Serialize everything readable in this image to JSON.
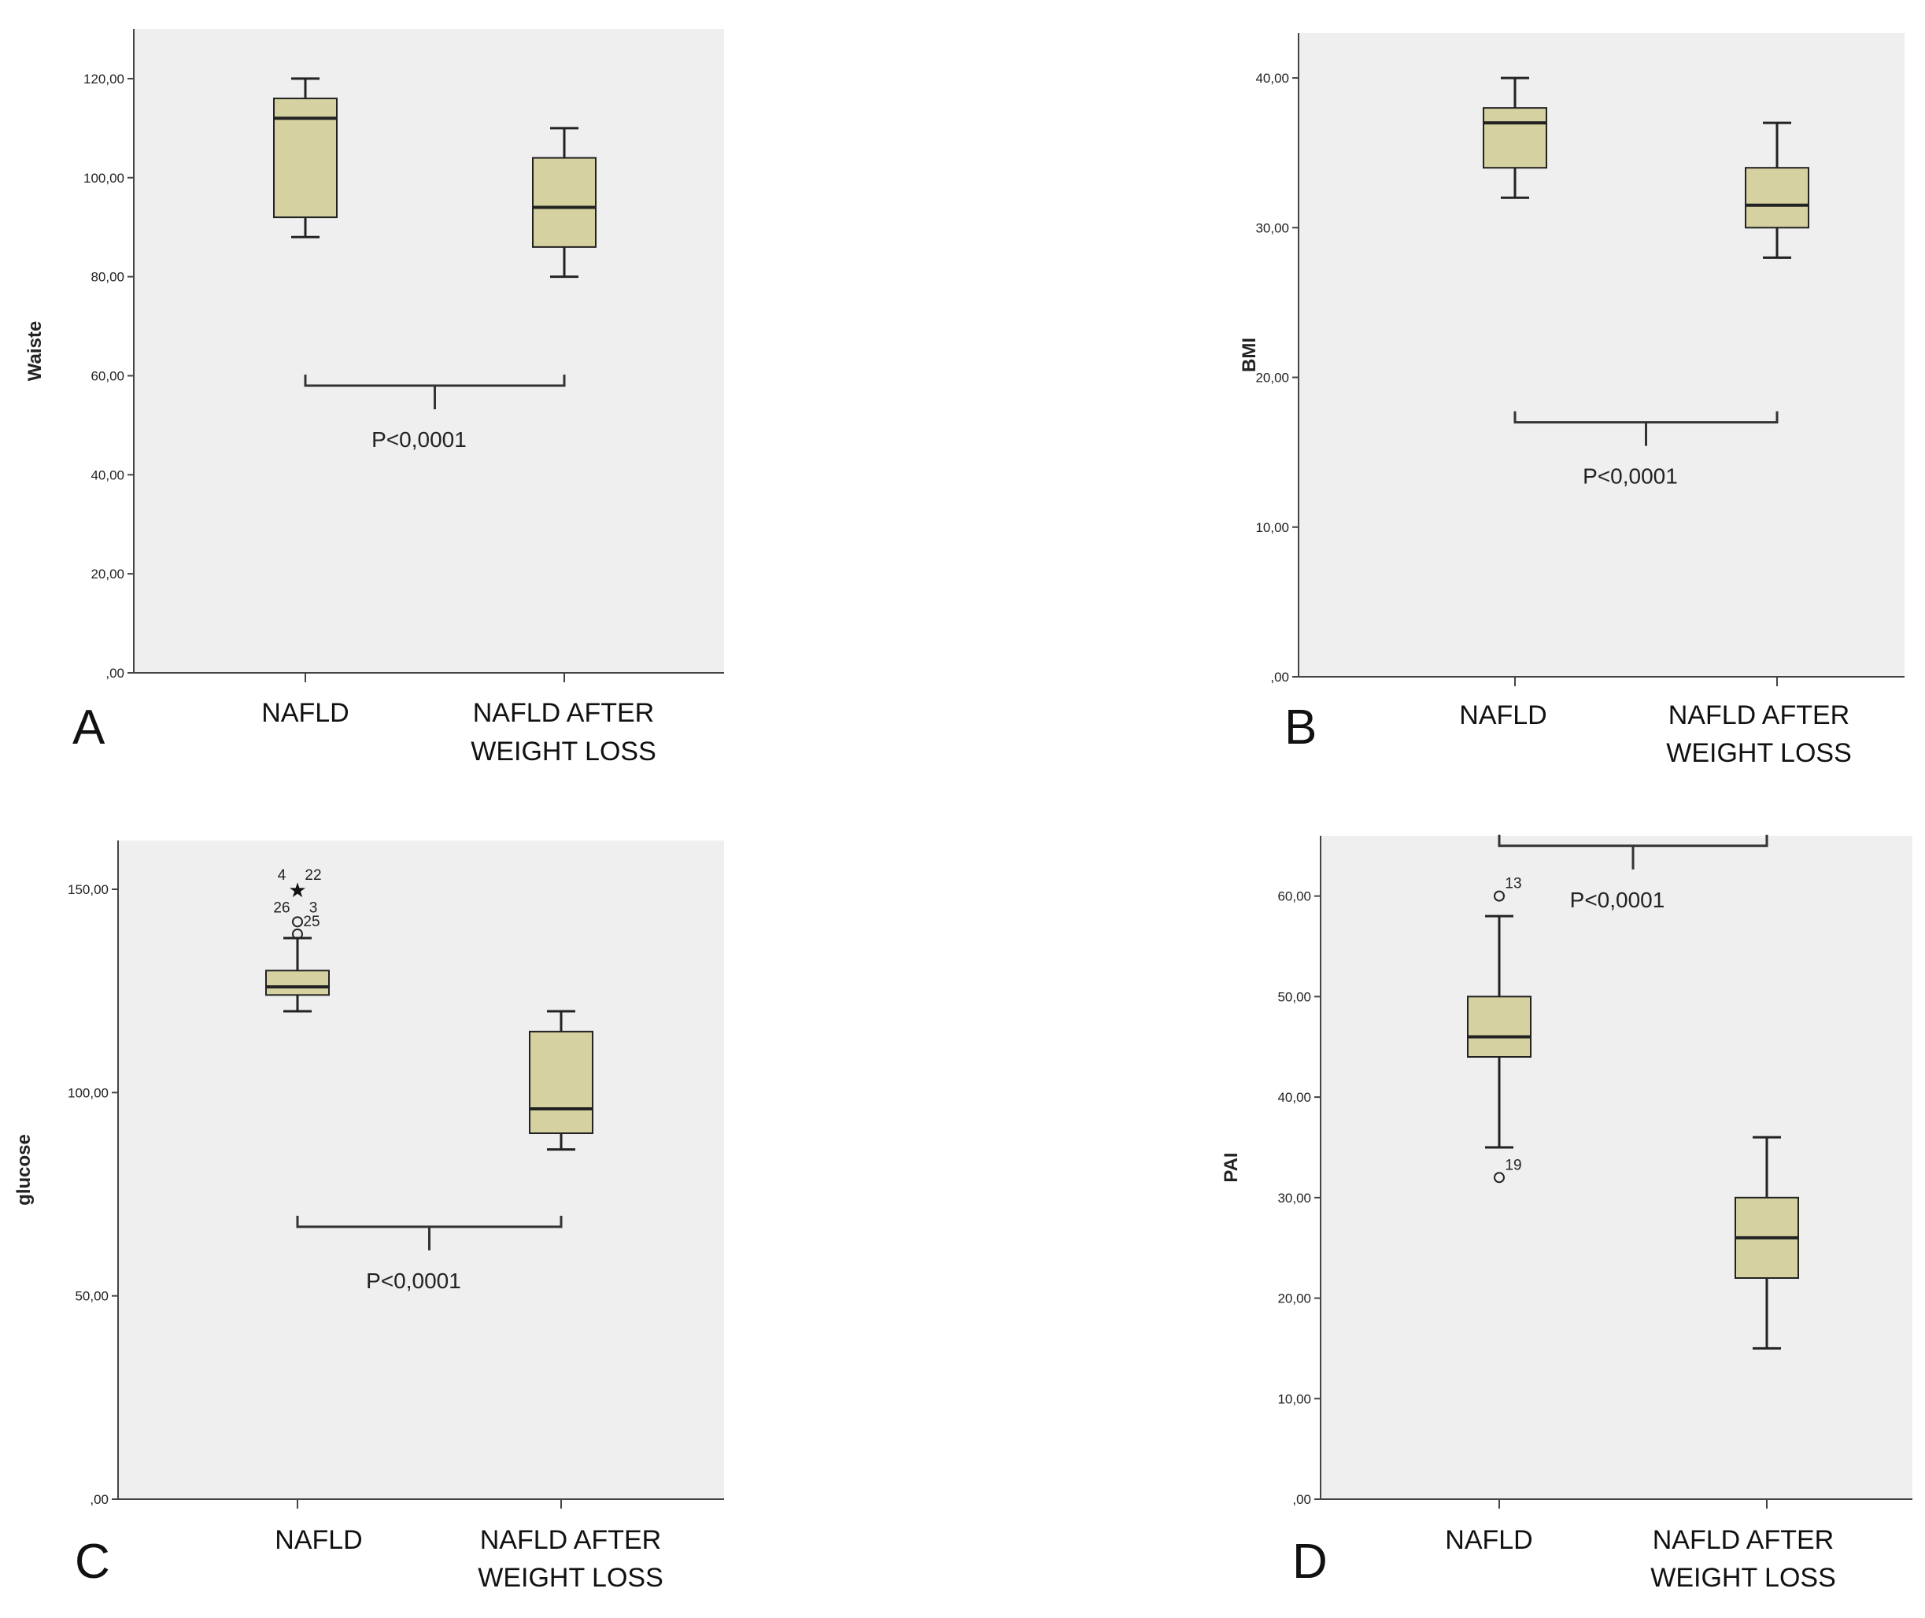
{
  "chart_data": [
    {
      "type": "box",
      "panel_label": "A",
      "title": "",
      "xlabel": "",
      "ylabel": "Waiste",
      "ylim": [
        0,
        130
      ],
      "yticks": [
        0,
        20,
        40,
        60,
        80,
        100,
        120
      ],
      "ytick_labels": [
        ",00",
        "20,00",
        "40,00",
        "60,00",
        "80,00",
        "100,00",
        "120,00"
      ],
      "categories": [
        {
          "line1": "NAFLD",
          "line2": ""
        },
        {
          "line1": "NAFLD AFTER",
          "line2": "WEIGHT LOSS"
        }
      ],
      "boxes": [
        {
          "min": 88,
          "q1": 92,
          "median": 112,
          "q3": 116,
          "max": 120,
          "outliers": []
        },
        {
          "min": 80,
          "q1": 86,
          "median": 94,
          "q3": 104,
          "max": 110,
          "outliers": []
        }
      ],
      "bracket": {
        "y": 58,
        "direction": "down",
        "label": "P<0,0001"
      }
    },
    {
      "type": "box",
      "panel_label": "B",
      "title": "",
      "xlabel": "",
      "ylabel": "BMI",
      "ylim": [
        0,
        43
      ],
      "yticks": [
        0,
        10,
        20,
        30,
        40
      ],
      "ytick_labels": [
        ",00",
        "10,00",
        "20,00",
        "30,00",
        "40,00"
      ],
      "categories": [
        {
          "line1": "NAFLD",
          "line2": ""
        },
        {
          "line1": "NAFLD AFTER",
          "line2": "WEIGHT LOSS"
        }
      ],
      "boxes": [
        {
          "min": 32,
          "q1": 34,
          "median": 37,
          "q3": 38,
          "max": 40,
          "outliers": []
        },
        {
          "min": 28,
          "q1": 30,
          "median": 31.5,
          "q3": 34,
          "max": 37,
          "outliers": []
        }
      ],
      "bracket": {
        "y": 17,
        "direction": "down",
        "label": "P<0,0001"
      }
    },
    {
      "type": "box",
      "panel_label": "C",
      "title": "",
      "xlabel": "",
      "ylabel": "glucose",
      "ylim": [
        0,
        162
      ],
      "yticks": [
        0,
        50,
        100,
        150
      ],
      "ytick_labels": [
        ",00",
        "50,00",
        "100,00",
        "150,00"
      ],
      "categories": [
        {
          "line1": "NAFLD",
          "line2": ""
        },
        {
          "line1": "NAFLD AFTER",
          "line2": "WEIGHT LOSS"
        }
      ],
      "boxes": [
        {
          "min": 120,
          "q1": 124,
          "median": 126,
          "q3": 130,
          "max": 138,
          "outliers": [
            {
              "value": 150,
              "marker": "star",
              "labels": [
                "4",
                "22"
              ]
            },
            {
              "value": 142,
              "marker": "circle",
              "labels": [
                "26",
                "3"
              ]
            },
            {
              "value": 139,
              "marker": "circle",
              "labels": [
                "25"
              ]
            }
          ]
        },
        {
          "min": 86,
          "q1": 90,
          "median": 96,
          "q3": 115,
          "max": 120,
          "outliers": []
        }
      ],
      "bracket": {
        "y": 67,
        "direction": "down",
        "label": "P<0,0001"
      }
    },
    {
      "type": "box",
      "panel_label": "D",
      "title": "",
      "xlabel": "",
      "ylabel": "PAI",
      "ylim": [
        0,
        66
      ],
      "yticks": [
        0,
        10,
        20,
        30,
        40,
        50,
        60
      ],
      "ytick_labels": [
        ",00",
        "10,00",
        "20,00",
        "30,00",
        "40,00",
        "50,00",
        "60,00"
      ],
      "categories": [
        {
          "line1": "NAFLD",
          "line2": ""
        },
        {
          "line1": "NAFLD AFTER",
          "line2": "WEIGHT LOSS"
        }
      ],
      "boxes": [
        {
          "min": 35,
          "q1": 44,
          "median": 46,
          "q3": 50,
          "max": 58,
          "outliers": [
            {
              "value": 60,
              "marker": "circle",
              "labels": [
                "13"
              ]
            },
            {
              "value": 32,
              "marker": "circle",
              "labels": [
                "19"
              ]
            }
          ]
        },
        {
          "min": 15,
          "q1": 22,
          "median": 26,
          "q3": 30,
          "max": 36,
          "outliers": []
        }
      ],
      "bracket": {
        "y": 65,
        "direction": "down",
        "label": "P<0,0001"
      }
    }
  ],
  "colors": {
    "plot_background": "#efefef",
    "box_fill": "#d6d1a0",
    "box_stroke": "#222222",
    "axis": "#444444"
  }
}
